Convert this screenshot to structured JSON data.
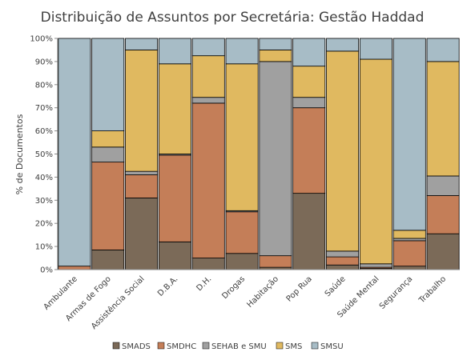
{
  "chart_data": {
    "type": "bar",
    "stacked": true,
    "normalized_percent": true,
    "title": "Distribuição de Assuntos por Secretária: Gestão Haddad",
    "xlabel": "",
    "ylabel": "% de Documentos",
    "ylim": [
      0,
      100
    ],
    "ytick_labels": [
      "0%",
      "10%",
      "20%",
      "30%",
      "40%",
      "50%",
      "60%",
      "70%",
      "80%",
      "90%",
      "100%"
    ],
    "grid": false,
    "legend_position": "bottom",
    "categories": [
      "Ambulante",
      "Armas de Fogo",
      "Assistência Social",
      "D.B.A.",
      "D.H.",
      "Drogas",
      "Habitação",
      "Pop Rua",
      "Saúde",
      "Saúde Mental",
      "Segurança",
      "Trabalho"
    ],
    "series": [
      {
        "name": "SMADS",
        "color": "#7b6a58",
        "values": [
          0,
          8.5,
          31,
          12,
          5,
          7,
          1,
          33,
          2,
          0.5,
          1.5,
          15.5
        ]
      },
      {
        "name": "SMDHC",
        "color": "#c47e58",
        "values": [
          1.5,
          38,
          10,
          37.5,
          67,
          18,
          5,
          37,
          3.5,
          0.5,
          11,
          16.5
        ]
      },
      {
        "name": "SEHAB e SMU",
        "color": "#a0a0a0",
        "values": [
          0,
          6.5,
          1.5,
          0.5,
          2.5,
          0.5,
          84,
          4.5,
          2.5,
          1.5,
          1,
          8.5
        ]
      },
      {
        "name": "SMS",
        "color": "#e0b960",
        "values": [
          0,
          7,
          52.5,
          39,
          18,
          63.5,
          5,
          13.5,
          86.5,
          88.5,
          3.5,
          49.5
        ]
      },
      {
        "name": "SMSU",
        "color": "#a7bcc6",
        "values": [
          98.5,
          40,
          5,
          11,
          7.5,
          11,
          5,
          12,
          5.5,
          9,
          83,
          10
        ]
      }
    ]
  }
}
